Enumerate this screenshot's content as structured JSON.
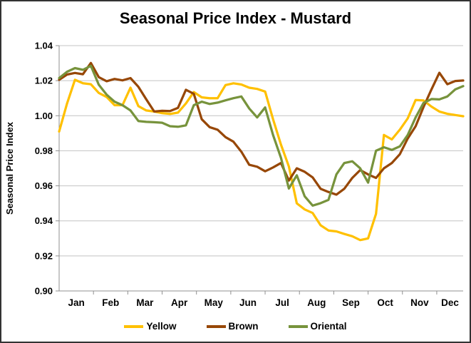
{
  "chart_data": {
    "type": "line",
    "title": "Seasonal Price Index - Mustard",
    "xlabel": "",
    "ylabel": "Seasonal Price Index",
    "ylim": [
      0.9,
      1.04
    ],
    "y_ticks": [
      0.9,
      0.92,
      0.94,
      0.96,
      0.98,
      1.0,
      1.02,
      1.04
    ],
    "x_tick_labels": [
      "Jan",
      "Feb",
      "Mar",
      "Apr",
      "May",
      "Jun",
      "Jul",
      "Aug",
      "Sep",
      "Oct",
      "Nov",
      "Dec"
    ],
    "points_per_month": 4.3333,
    "grid": "horizontal",
    "legend_position": "bottom",
    "axis_color": "#909090",
    "grid_color": "#c3c3c3",
    "series": [
      {
        "name": "Yellow",
        "color": "#FFC000",
        "values": [
          0.991,
          1.007,
          1.0205,
          1.0185,
          1.018,
          1.013,
          1.0107,
          1.006,
          1.006,
          1.016,
          1.0055,
          1.003,
          1.0024,
          1.0015,
          1.001,
          1.0018,
          1.007,
          1.0135,
          1.0105,
          1.01,
          1.01,
          1.0175,
          1.0185,
          1.0178,
          1.016,
          1.0153,
          1.0138,
          0.998,
          0.9835,
          0.971,
          0.95,
          0.9465,
          0.9445,
          0.9375,
          0.9345,
          0.934,
          0.9325,
          0.9312,
          0.929,
          0.93,
          0.944,
          0.989,
          0.9865,
          0.992,
          0.9985,
          1.009,
          1.0087,
          1.0052,
          1.0024,
          1.0011,
          1.0004,
          0.9997
        ]
      },
      {
        "name": "Brown",
        "color": "#974706",
        "values": [
          1.0205,
          1.0235,
          1.0244,
          1.0237,
          1.0301,
          1.022,
          1.0197,
          1.021,
          1.0202,
          1.0215,
          1.0165,
          1.0093,
          1.0024,
          1.0028,
          1.0027,
          1.0045,
          1.0148,
          1.0125,
          0.998,
          0.9935,
          0.992,
          0.9878,
          0.9852,
          0.9795,
          0.972,
          0.9709,
          0.9683,
          0.9705,
          0.973,
          0.963,
          0.97,
          0.968,
          0.9648,
          0.9583,
          0.9565,
          0.955,
          0.9583,
          0.9645,
          0.969,
          0.9665,
          0.9645,
          0.97,
          0.973,
          0.978,
          0.987,
          0.994,
          1.005,
          1.015,
          1.0245,
          1.018,
          1.0198,
          1.0201
        ]
      },
      {
        "name": "Oriental",
        "color": "#77933C",
        "values": [
          1.0215,
          1.0251,
          1.0272,
          1.0262,
          1.0285,
          1.0177,
          1.012,
          1.008,
          1.006,
          1.003,
          0.997,
          0.9965,
          0.9963,
          0.996,
          0.994,
          0.9937,
          0.9945,
          1.006,
          1.008,
          1.0067,
          1.0075,
          1.0088,
          1.01,
          1.011,
          1.0041,
          0.999,
          1.0047,
          0.989,
          0.976,
          0.9585,
          0.966,
          0.954,
          0.9487,
          0.9501,
          0.952,
          0.9665,
          0.973,
          0.974,
          0.97,
          0.9618,
          0.98,
          0.982,
          0.9805,
          0.9825,
          0.989,
          0.999,
          1.0073,
          1.0095,
          1.0093,
          1.011,
          1.015,
          1.0169
        ]
      }
    ]
  }
}
